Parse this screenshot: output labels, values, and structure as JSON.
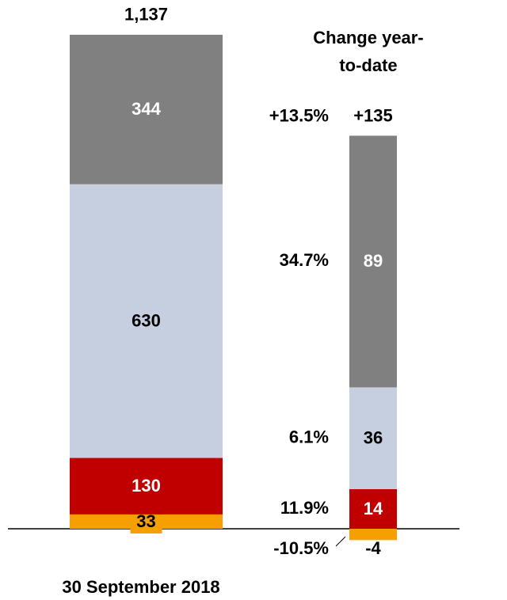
{
  "chart_data": [
    {
      "type": "stacked_bar",
      "categories": [
        "30 September 2018"
      ],
      "ylim": [
        0,
        1217
      ],
      "series": [
        {
          "color": "#f5a000",
          "values": [
            33
          ]
        },
        {
          "color": "#c00000",
          "values": [
            130
          ]
        },
        {
          "color": "#c5cfe0",
          "values": [
            630
          ]
        },
        {
          "color": "#808080",
          "values": [
            344
          ]
        }
      ],
      "totals": [
        1137
      ],
      "total_labels": [
        "1,137"
      ]
    },
    {
      "type": "stacked_bar",
      "categories": [
        "Change year-to-date"
      ],
      "ylim": [
        0,
        187
      ],
      "series": [
        {
          "color": "#f5a000",
          "values": [
            -4
          ],
          "change_pct": [
            -10.5
          ],
          "change_pct_labels": [
            "-10.5%"
          ]
        },
        {
          "color": "#c00000",
          "values": [
            14
          ],
          "change_pct": [
            11.9
          ],
          "change_pct_labels": [
            "11.9%"
          ]
        },
        {
          "color": "#c5cfe0",
          "values": [
            36
          ],
          "change_pct": [
            6.1
          ],
          "change_pct_labels": [
            "6.1%"
          ]
        },
        {
          "color": "#808080",
          "values": [
            89
          ],
          "change_pct": [
            34.7
          ],
          "change_pct_labels": [
            "34.7%"
          ]
        }
      ],
      "totals": [
        135
      ],
      "total_labels": [
        "+135"
      ],
      "total_change_pct": [
        13.5
      ],
      "total_change_pct_labels": [
        "+13.5%"
      ]
    }
  ]
}
